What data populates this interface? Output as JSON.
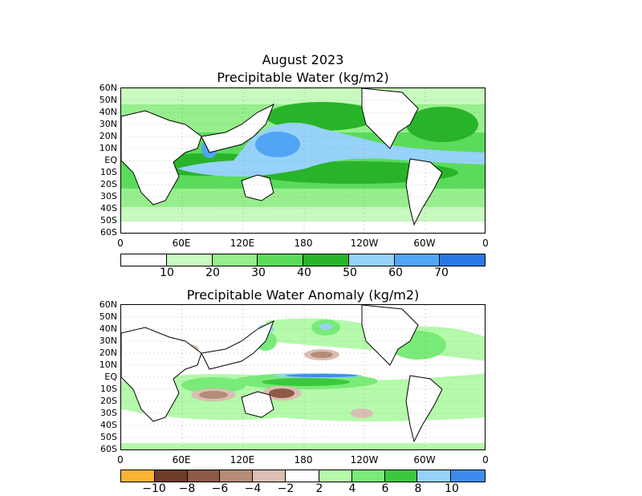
{
  "title_line1": "August 2023",
  "panel1": {
    "title": "Precipitable Water (kg/m2)",
    "lat_labels": [
      "60N",
      "50N",
      "40N",
      "30N",
      "20N",
      "10N",
      "EQ",
      "10S",
      "20S",
      "30S",
      "40S",
      "50S",
      "60S"
    ],
    "lon_labels": [
      "0",
      "60E",
      "120E",
      "180",
      "120W",
      "60W",
      "0"
    ],
    "colorbar": {
      "colors": [
        "#ffffff",
        "#c8fac0",
        "#96ee8c",
        "#5adc5a",
        "#28b428",
        "#96d2fa",
        "#50a5f5",
        "#2878e6"
      ],
      "labels": [
        "10",
        "20",
        "30",
        "40",
        "50",
        "60",
        "70"
      ]
    }
  },
  "panel2": {
    "title": "Precipitable Water Anomaly (kg/m2)",
    "lat_labels": [
      "60N",
      "50N",
      "40N",
      "30N",
      "20N",
      "10N",
      "EQ",
      "10S",
      "20S",
      "30S",
      "40S",
      "50S",
      "60S"
    ],
    "lon_labels": [
      "0",
      "60E",
      "120E",
      "180",
      "120W",
      "60W",
      "0"
    ],
    "colorbar": {
      "colors": [
        "#fab432",
        "#6e3c28",
        "#8c5a46",
        "#b48c78",
        "#dcbeb4",
        "#ffffff",
        "#b4faaa",
        "#78eb78",
        "#3cc83c",
        "#96d2fa",
        "#3c8cf0"
      ],
      "labels": [
        "−10",
        "−8",
        "−6",
        "−4",
        "−2",
        "2",
        "4",
        "6",
        "8",
        "10"
      ]
    }
  }
}
